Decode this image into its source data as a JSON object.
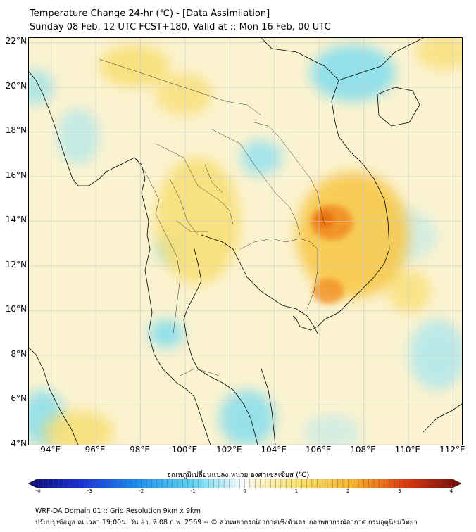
{
  "header": {
    "title_line1": "Temperature Change 24-hr (℃) - [Data Assimilation]",
    "title_line2": "Sunday 08 Feb, 12 UTC FCST+180, Valid at :: Mon 16 Feb, 00 UTC"
  },
  "map": {
    "lat_labels": [
      "22°N",
      "20°N",
      "18°N",
      "16°N",
      "14°N",
      "12°N",
      "10°N",
      "8°N",
      "6°N",
      "4°N"
    ],
    "lon_labels": [
      "94°E",
      "96°E",
      "98°E",
      "100°E",
      "102°E",
      "104°E",
      "106°E",
      "108°E",
      "110°E",
      "112°E"
    ],
    "lat_range": [
      4,
      22.2
    ],
    "lon_range": [
      93,
      112.4
    ],
    "colors": {
      "background": "#fbf3d0",
      "water": "#ffffff",
      "cold": "#7fdcef",
      "warm": "#f7c84a",
      "hot": "#f08a1c",
      "gridline": "#cccccc",
      "coast": "#000000"
    }
  },
  "colorbar": {
    "title": "อุณหภูมิเปลี่ยนแปลง หน่วย องศาเซลเซียส (℃)",
    "ticks": [
      "-4",
      "-3",
      "-2",
      "-1",
      "0",
      "1",
      "2",
      "3",
      "4"
    ],
    "range": [
      -4,
      4
    ]
  },
  "footer": {
    "line1": "WRF-DA Domain 01 :: Grid Resolution 9km x 9km",
    "line2": "ปรับปรุงข้อมูล ณ เวลา 19:00น. วัน อา. ที่ 08 ก.พ. 2569 -- © ส่วนพยากรณ์อากาศเชิงตัวเลข กองพยากรณ์อากาศ กรมอุตุนิยมวิทยา"
  }
}
